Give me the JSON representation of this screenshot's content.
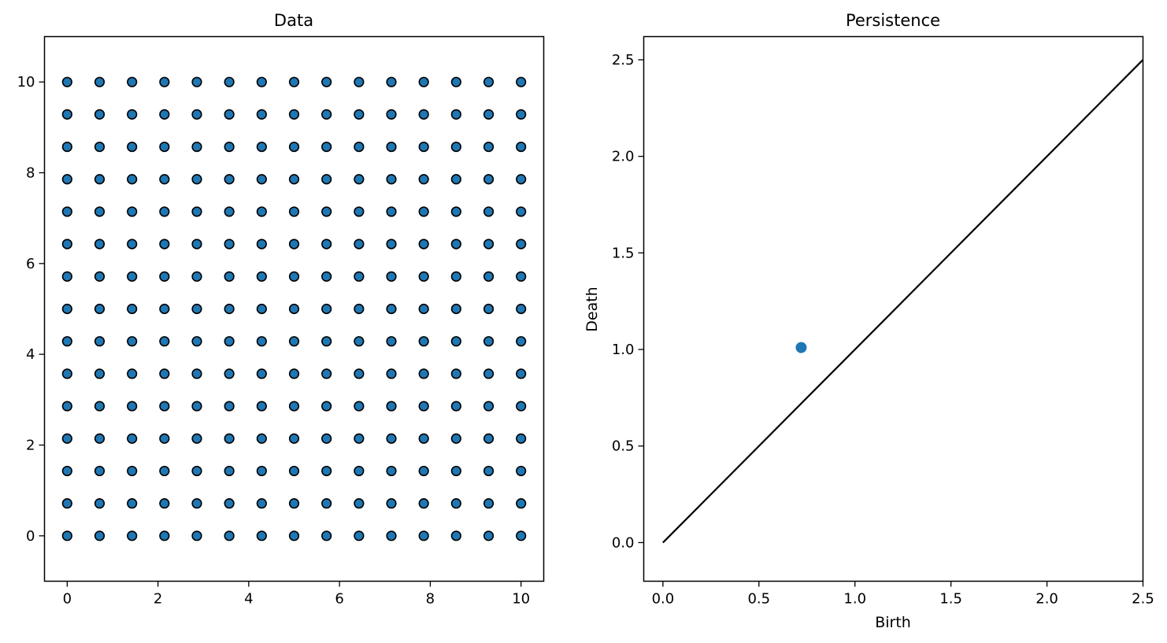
{
  "chart_data": [
    {
      "type": "scatter",
      "title": "Data",
      "xlabel": "",
      "ylabel": "",
      "xlim": [
        -0.5,
        10.5
      ],
      "ylim": [
        -1.0,
        11.0
      ],
      "xticks": [
        0,
        2,
        4,
        6,
        8,
        10
      ],
      "xtick_labels": [
        "0",
        "2",
        "4",
        "6",
        "8",
        "10"
      ],
      "yticks": [
        0,
        2,
        4,
        6,
        8,
        10
      ],
      "ytick_labels": [
        "0",
        "2",
        "4",
        "6",
        "8",
        "10"
      ],
      "grid": false,
      "marker_face": "#1f77b4",
      "marker_edge": "#000000",
      "grid_points": {
        "x": [
          0,
          0.714,
          1.429,
          2.143,
          2.857,
          3.571,
          4.286,
          5.0,
          5.714,
          6.429,
          7.143,
          7.857,
          8.571,
          9.286,
          10.0
        ],
        "y": [
          0,
          0.714,
          1.429,
          2.143,
          2.857,
          3.571,
          4.286,
          5.0,
          5.714,
          6.429,
          7.143,
          7.857,
          8.571,
          9.286,
          10.0
        ]
      }
    },
    {
      "type": "scatter",
      "title": "Persistence",
      "xlabel": "Birth",
      "ylabel": "Death",
      "xlim": [
        -0.1,
        2.5
      ],
      "ylim": [
        -0.2,
        2.62
      ],
      "xticks": [
        0.0,
        0.5,
        1.0,
        1.5,
        2.0,
        2.5
      ],
      "xtick_labels": [
        "0.0",
        "0.5",
        "1.0",
        "1.5",
        "2.0",
        "2.5"
      ],
      "yticks": [
        0.0,
        0.5,
        1.0,
        1.5,
        2.0,
        2.5
      ],
      "ytick_labels": [
        "0.0",
        "0.5",
        "1.0",
        "1.5",
        "2.0",
        "2.5"
      ],
      "grid": false,
      "points": [
        {
          "x": 0.72,
          "y": 1.01
        }
      ],
      "point_color": "#1f77b4",
      "diagonal": {
        "from": [
          0,
          0
        ],
        "to": [
          2.5,
          2.5
        ],
        "color": "#000000"
      }
    }
  ]
}
